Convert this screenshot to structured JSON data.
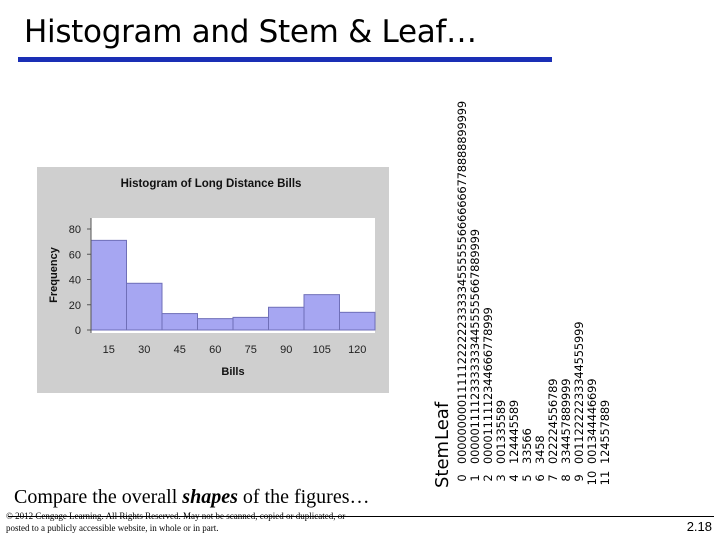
{
  "slide": {
    "title": "Histogram and Stem & Leaf…",
    "caption_pre": "Compare the overall ",
    "caption_em": "shapes",
    "caption_post": " of the figures…",
    "copyright": "© 2012 Cengage Learning. All Rights Reserved. May not be scanned, copied or duplicated, or posted to a publicly accessible website, in whole or in part.",
    "slide_number": "2.18"
  },
  "colors": {
    "title_rule": "#1a2fb5",
    "bar_fill": "#a6a6f2",
    "bar_stroke": "#6f6fb8",
    "panel_bg": "#cfcfcf",
    "plot_bg": "#ffffff"
  },
  "chart_data": {
    "type": "bar",
    "title": "Histogram of Long Distance Bills",
    "xlabel": "Bills",
    "ylabel": "Frequency",
    "ylim": [
      0,
      80
    ],
    "yticks": [
      0,
      20,
      40,
      60,
      80
    ],
    "grid": false,
    "legend": "none",
    "bin_edges": [
      0,
      15,
      30,
      45,
      60,
      75,
      90,
      105,
      120
    ],
    "categories": [
      "15",
      "30",
      "45",
      "60",
      "75",
      "90",
      "105",
      "120"
    ],
    "values": [
      71,
      37,
      13,
      9,
      10,
      18,
      28,
      14
    ]
  },
  "stem_leaf": {
    "header_stem": "Stem",
    "header_leaf": "Leaf",
    "rows": [
      {
        "stem": "0",
        "leaves": "000000000111112222223333345555556666666778888899999"
      },
      {
        "stem": "1",
        "leaves": "000001111233333334455555667889999"
      },
      {
        "stem": "2",
        "leaves": "0000111112344666778999"
      },
      {
        "stem": "3",
        "leaves": "001335589"
      },
      {
        "stem": "4",
        "leaves": "124445589"
      },
      {
        "stem": "5",
        "leaves": "33566"
      },
      {
        "stem": "6",
        "leaves": "3458"
      },
      {
        "stem": "7",
        "leaves": "022224556789"
      },
      {
        "stem": "8",
        "leaves": "334457889999"
      },
      {
        "stem": "9",
        "leaves": "00112222233344555999"
      },
      {
        "stem": "10",
        "leaves": "001344446699"
      },
      {
        "stem": "11",
        "leaves": "124557889"
      }
    ]
  }
}
